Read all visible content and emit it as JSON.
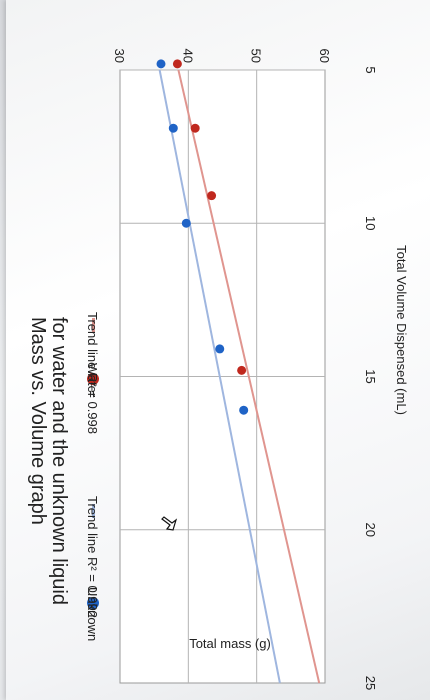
{
  "chart_data": {
    "type": "scatter",
    "title": "Mass vs. Volume graph",
    "subtitle": "for water and the unknown liquid",
    "xlabel": "Total Volume Dispensed (mL)",
    "ylabel": "Total mass (g)",
    "xlim": [
      4.5,
      25
    ],
    "ylim": [
      30,
      62
    ],
    "x_ticks": [
      "5",
      "10",
      "15",
      "20",
      "25"
    ],
    "y_ticks": [
      "30",
      "40",
      "50",
      "60"
    ],
    "grid": true,
    "legend_position": "top",
    "series": [
      {
        "name": "Unknown",
        "color": "#1f63c6",
        "points": [
          [
            4.8,
            36.0
          ],
          [
            6.9,
            37.8
          ],
          [
            10.0,
            39.7
          ],
          [
            14.1,
            44.6
          ],
          [
            16.1,
            48.1
          ]
        ]
      },
      {
        "name": "Water",
        "color": "#c0281e",
        "points": [
          [
            4.8,
            38.4
          ],
          [
            6.9,
            41.0
          ],
          [
            9.1,
            43.4
          ],
          [
            14.8,
            47.8
          ]
        ]
      }
    ],
    "trend_lines": [
      {
        "name": "Trend line R² = 0.992",
        "color": "#9fb6df",
        "slope": 0.88,
        "intercept": 31.4
      },
      {
        "name": "Trend line R² = 0.998",
        "color": "#e0958f",
        "slope": 1.03,
        "intercept": 33.4
      }
    ],
    "legend": [
      {
        "label": "Unknown",
        "marker": "dot",
        "color": "#1f63c6"
      },
      {
        "label": "Trend line R² = 0.992",
        "marker": "line",
        "color": "#9fb6df"
      },
      {
        "label": "Water",
        "marker": "dot",
        "color": "#c0281e"
      },
      {
        "label": "Trend line R² = 0.998",
        "marker": "line",
        "color": "#e0958f"
      }
    ]
  }
}
